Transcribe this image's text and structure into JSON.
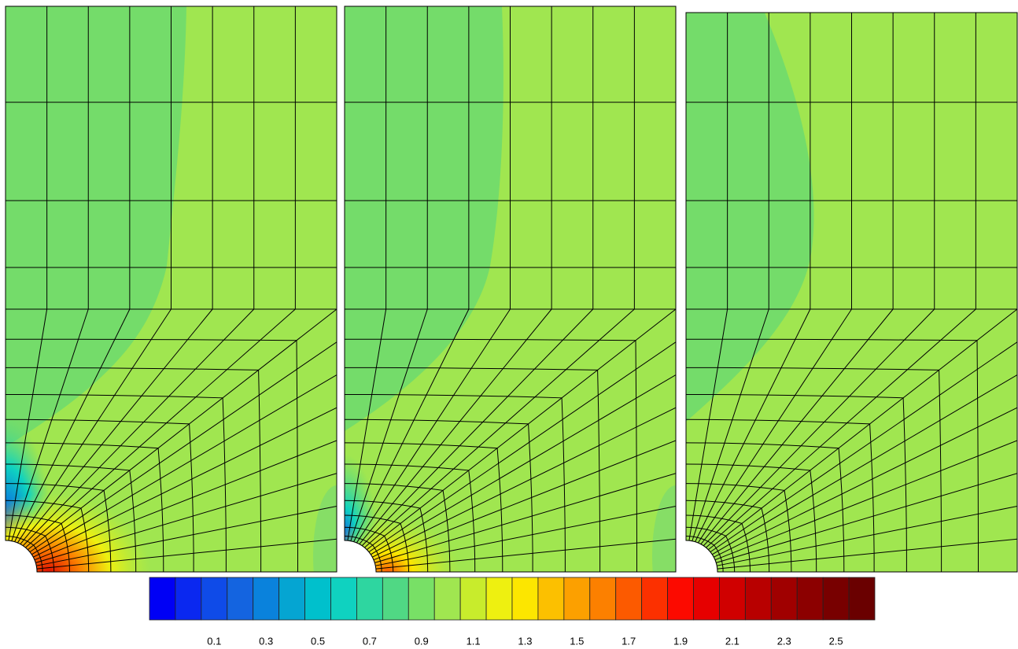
{
  "chart_data": {
    "type": "colorbar",
    "colors": [
      "#0000f5",
      "#0a28f0",
      "#0f4be8",
      "#1464e0",
      "#0a82dc",
      "#05a5d2",
      "#00c0cc",
      "#0fd2c0",
      "#2ed6a0",
      "#50d884",
      "#78e066",
      "#a0e650",
      "#c8ec2c",
      "#eef010",
      "#fce600",
      "#fcc000",
      "#fca000",
      "#fc8000",
      "#fc5a00",
      "#fc3000",
      "#fc0a00",
      "#e60000",
      "#d00000",
      "#b80000",
      "#a00000",
      "#8c0000",
      "#780000",
      "#6a0000"
    ],
    "xlim": [
      -0.15,
      2.65
    ],
    "xticks": [
      0.1,
      0.3,
      0.5,
      0.7,
      0.9,
      1.1,
      1.3,
      1.5,
      1.7,
      1.9,
      2.1,
      2.3,
      2.5
    ]
  }
}
